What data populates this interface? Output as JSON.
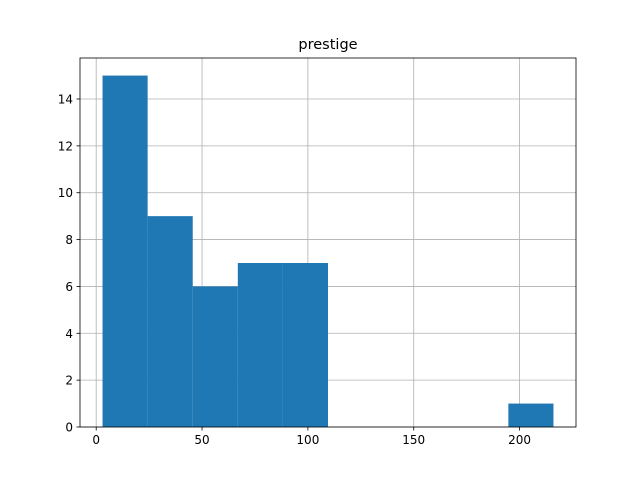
{
  "chart_data": {
    "type": "bar",
    "title": "prestige",
    "xlabel": "",
    "ylabel": "",
    "bins": [
      {
        "x0": 3,
        "x1": 24.3,
        "count": 15
      },
      {
        "x0": 24.3,
        "x1": 45.6,
        "count": 9
      },
      {
        "x0": 45.6,
        "x1": 66.9,
        "count": 6
      },
      {
        "x0": 66.9,
        "x1": 88.2,
        "count": 7
      },
      {
        "x0": 88.2,
        "x1": 109.5,
        "count": 7
      },
      {
        "x0": 109.5,
        "x1": 130.8,
        "count": 0
      },
      {
        "x0": 130.8,
        "x1": 152.1,
        "count": 0
      },
      {
        "x0": 152.1,
        "x1": 173.4,
        "count": 0
      },
      {
        "x0": 173.4,
        "x1": 194.7,
        "count": 0
      },
      {
        "x0": 194.7,
        "x1": 216,
        "count": 1
      }
    ],
    "xlim": [
      -7.65,
      226.65
    ],
    "ylim": [
      0,
      15.75
    ],
    "xticks": [
      0,
      50,
      100,
      150,
      200
    ],
    "yticks": [
      0,
      2,
      4,
      6,
      8,
      10,
      12,
      14
    ],
    "grid": true,
    "bar_color": "#1f77b4"
  }
}
